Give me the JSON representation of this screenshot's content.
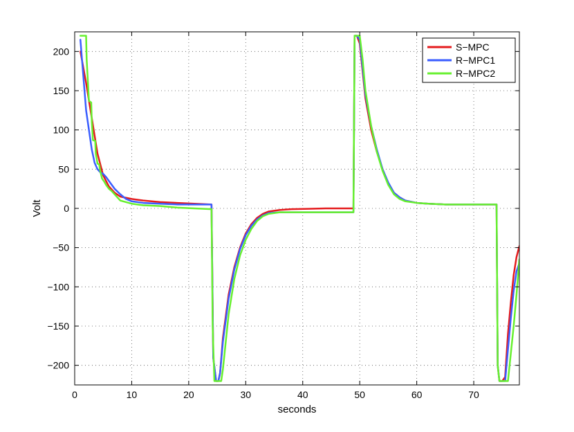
{
  "chart_data": {
    "type": "line",
    "xlabel": "seconds",
    "ylabel": "Volt",
    "xlim": [
      0,
      78
    ],
    "ylim": [
      -225,
      225
    ],
    "xticks": [
      0,
      10,
      20,
      30,
      40,
      50,
      60,
      70
    ],
    "yticks": [
      -200,
      -150,
      -100,
      -50,
      0,
      50,
      100,
      150,
      200
    ],
    "grid": true,
    "legend_position": "top-right",
    "series": [
      {
        "name": "S−MPC",
        "color": "#e41a1c",
        "x": [
          1.0,
          2.0,
          3.0,
          4.0,
          5.0,
          6.0,
          7.0,
          8.0,
          10.0,
          12.0,
          15.0,
          18.0,
          21.0,
          24.0,
          24.3,
          24.8,
          25.2,
          25.5,
          26.0,
          27.0,
          28.0,
          29.0,
          30.0,
          31.0,
          32.0,
          33.0,
          34.0,
          36.0,
          38.0,
          41.0,
          44.0,
          47.0,
          48.9,
          49.1,
          49.5,
          50.0,
          50.5,
          51.0,
          52.0,
          53.0,
          54.0,
          55.0,
          56.0,
          57.0,
          58.0,
          60.0,
          62.0,
          65.0,
          68.0,
          71.0,
          74.0,
          74.2,
          74.5,
          75.0,
          75.5,
          76.0,
          76.5,
          77.0,
          77.5,
          78.0
        ],
        "y": [
          200,
          160,
          115,
          70,
          42,
          28,
          20,
          15,
          12,
          10,
          8,
          7,
          6,
          5,
          -190,
          -220,
          -220,
          -210,
          -165,
          -110,
          -75,
          -50,
          -32,
          -20,
          -12,
          -7,
          -4,
          -2,
          -1,
          -0.5,
          0,
          0,
          0,
          220,
          220,
          210,
          175,
          140,
          100,
          72,
          50,
          32,
          20,
          14,
          10,
          7,
          6,
          5,
          5,
          5,
          5,
          -200,
          -220,
          -220,
          -215,
          -160,
          -120,
          -85,
          -62,
          -48
        ]
      },
      {
        "name": "R−MPC1",
        "color": "#3a5dff",
        "x": [
          1.0,
          1.5,
          2.0,
          2.5,
          3.0,
          3.5,
          4.0,
          4.5,
          5.0,
          5.5,
          6.0,
          7.0,
          8.0,
          9.0,
          10.0,
          12.0,
          15.0,
          18.0,
          21.0,
          24.0,
          24.3,
          24.8,
          25.2,
          25.5,
          26.0,
          27.0,
          28.0,
          29.0,
          30.0,
          31.0,
          32.0,
          33.0,
          34.0,
          36.0,
          38.0,
          41.0,
          44.0,
          47.0,
          48.9,
          49.1,
          49.5,
          50.0,
          50.5,
          51.0,
          52.0,
          53.0,
          54.0,
          55.0,
          56.0,
          57.0,
          58.0,
          60.0,
          62.0,
          65.0,
          68.0,
          71.0,
          74.0,
          74.2,
          74.5,
          75.0,
          75.5,
          76.0,
          76.5,
          77.0,
          77.5,
          78.0
        ],
        "y": [
          215,
          170,
          125,
          100,
          75,
          58,
          50,
          46,
          44,
          40,
          35,
          25,
          18,
          12,
          9,
          7,
          6,
          5,
          5,
          5,
          -190,
          -220,
          -220,
          -210,
          -170,
          -115,
          -78,
          -52,
          -34,
          -22,
          -14,
          -9,
          -6,
          -5,
          -5,
          -5,
          -5,
          -5,
          -5,
          220,
          220,
          215,
          180,
          145,
          105,
          75,
          50,
          33,
          20,
          14,
          10,
          7,
          6,
          5,
          5,
          5,
          5,
          -200,
          -220,
          -220,
          -220,
          -180,
          -140,
          -105,
          -80,
          -70
        ]
      },
      {
        "name": "R−MPC2",
        "color": "#66f02e",
        "x": [
          1.0,
          2.0,
          2.1,
          2.5,
          2.9,
          3.0,
          3.2,
          3.6,
          3.7,
          4.0,
          4.3,
          4.5,
          4.8,
          5.2,
          5.5,
          6.0,
          6.5,
          7.0,
          8.0,
          10.0,
          12.0,
          15.0,
          18.0,
          21.0,
          24.0,
          24.2,
          24.5,
          25.0,
          25.7,
          26.0,
          27.0,
          28.0,
          29.0,
          30.0,
          31.0,
          32.0,
          33.0,
          34.0,
          36.0,
          38.0,
          41.0,
          44.0,
          47.0,
          48.9,
          49.1,
          49.5,
          50.0,
          50.5,
          51.0,
          52.0,
          53.0,
          54.0,
          55.0,
          56.0,
          57.0,
          58.0,
          60.0,
          62.0,
          65.0,
          68.0,
          71.0,
          74.0,
          74.2,
          74.5,
          75.0,
          75.5,
          76.0,
          76.5,
          77.0,
          77.5,
          78.0
        ],
        "y": [
          220,
          220,
          190,
          137,
          135,
          110,
          87,
          86,
          70,
          57,
          56,
          47,
          38,
          34,
          30,
          25,
          22,
          18,
          10,
          6,
          4,
          3,
          1,
          0,
          -1,
          -150,
          -220,
          -220,
          -220,
          -205,
          -135,
          -90,
          -60,
          -40,
          -26,
          -16,
          -10,
          -7,
          -5,
          -5,
          -5,
          -5,
          -5,
          -5,
          220,
          220,
          220,
          190,
          150,
          105,
          72,
          48,
          30,
          18,
          12,
          9,
          7,
          6,
          5,
          5,
          5,
          5,
          -200,
          -220,
          -220,
          -220,
          -220,
          -185,
          -150,
          -110,
          -65
        ]
      }
    ]
  }
}
